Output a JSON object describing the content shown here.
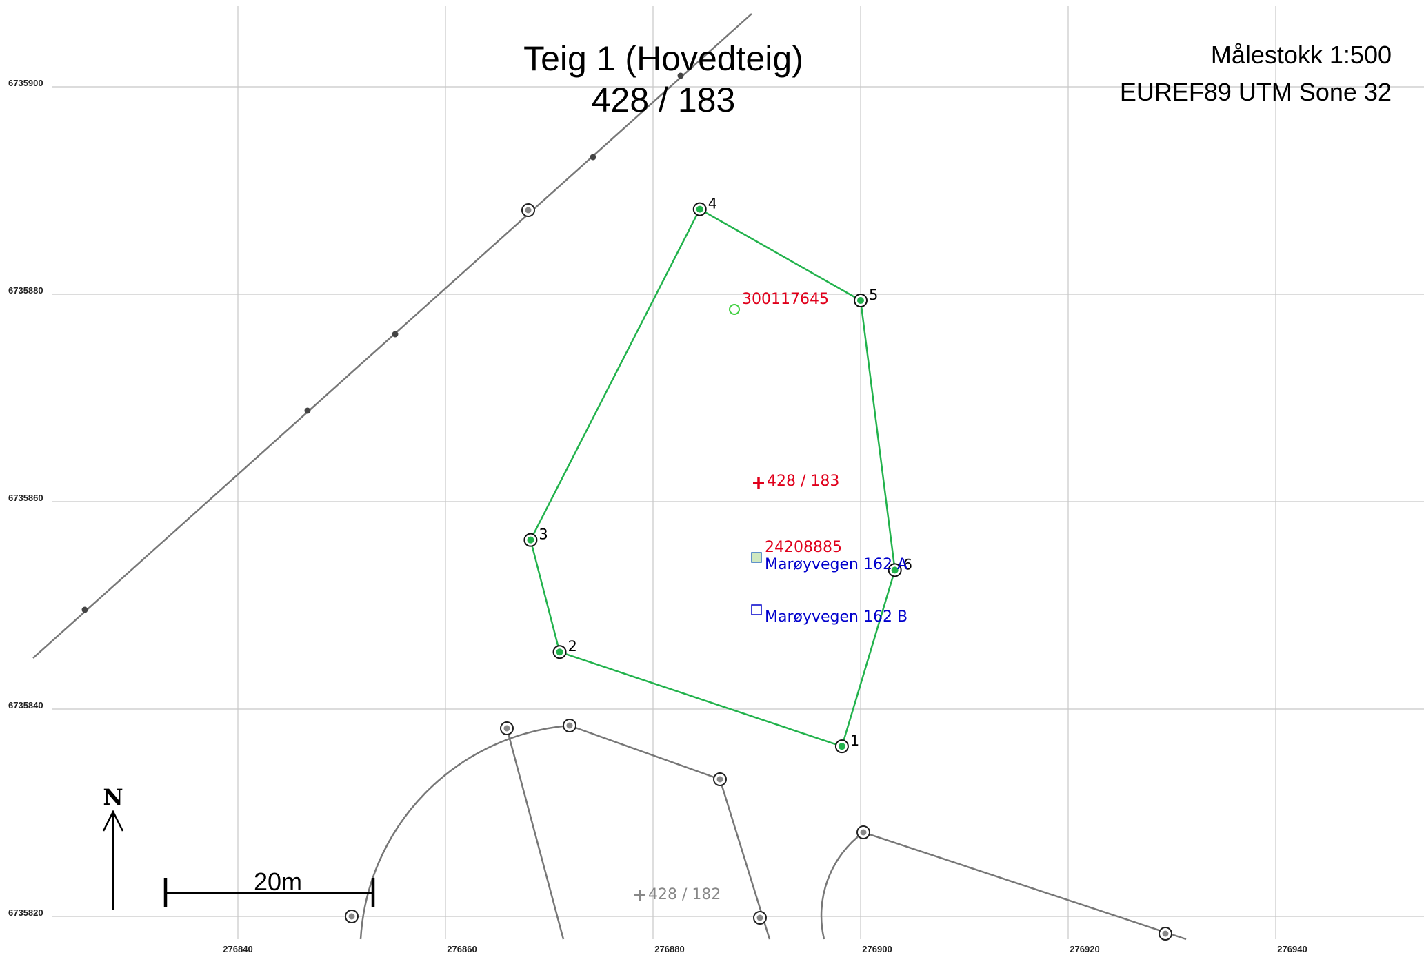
{
  "title": {
    "line1": "Teig 1 (Hovedteig)",
    "line2": "428 / 183"
  },
  "map_info": {
    "scale": "Målestokk 1:500",
    "projection": "EUREF89 UTM Sone 32"
  },
  "axes": {
    "x_ticks": [
      "276840",
      "276860",
      "276880",
      "276900",
      "276920",
      "276940"
    ],
    "y_ticks": [
      "6735900",
      "6735880",
      "6735860",
      "6735840",
      "6735820"
    ]
  },
  "parcel": {
    "color": "#22b24c",
    "points": [
      {
        "label": "1",
        "e": 276898.2,
        "n": 6735836.4
      },
      {
        "label": "2",
        "e": 276871.0,
        "n": 6735845.5
      },
      {
        "label": "3",
        "e": 276868.2,
        "n": 6735856.3
      },
      {
        "label": "4",
        "e": 276884.5,
        "n": 6735888.2
      },
      {
        "label": "5",
        "e": 276900.0,
        "n": 6735879.4
      },
      {
        "label": "6",
        "e": 276903.3,
        "n": 6735853.4
      }
    ]
  },
  "labels": {
    "building_id": "300117645",
    "parcel_id": "428 / 183",
    "building_number": "24208885",
    "address_a": "Marøyvegen 162 A",
    "address_b": "Marøyvegen 162 B",
    "neighbor_parcel": "428 / 182"
  },
  "scale_bar": {
    "label": "20m"
  },
  "north_arrow": {
    "label": "N"
  },
  "colors": {
    "accent_red": "#e0001b",
    "address_blue": "#0000cc",
    "neighbor_line": "#777777",
    "parcel_green": "#22b24c"
  }
}
